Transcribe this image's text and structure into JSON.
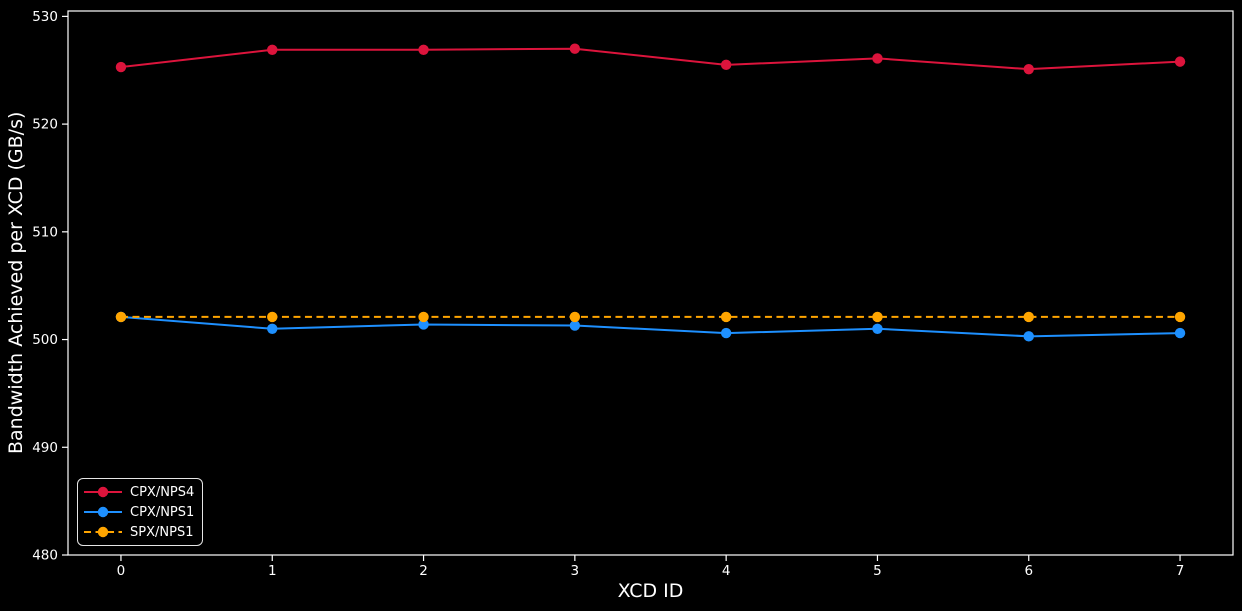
{
  "figure": {
    "background": "#000000",
    "text_color": "#ffffff",
    "axis_color": "#ffffff"
  },
  "chart_data": {
    "type": "line",
    "title": "",
    "xlabel": "XCD ID",
    "ylabel": "Bandwidth Achieved per XCD (GB/s)",
    "x": [
      0,
      1,
      2,
      3,
      4,
      5,
      6,
      7
    ],
    "xtick_labels": [
      "0",
      "1",
      "2",
      "3",
      "4",
      "5",
      "6",
      "7"
    ],
    "yticks": [
      480,
      490,
      500,
      510,
      520,
      530
    ],
    "ytick_labels": [
      "480",
      "490",
      "500",
      "510",
      "520",
      "530"
    ],
    "xlim": [
      -0.35,
      7.35
    ],
    "ylim": [
      480,
      530.5
    ],
    "grid": false,
    "legend_position": "lower-left",
    "series": [
      {
        "name": "CPX/NPS4",
        "color": "#dc143c",
        "line_style": "solid",
        "marker": "circle",
        "values": [
          525.3,
          526.9,
          526.9,
          527.0,
          525.5,
          526.1,
          525.1,
          525.8
        ]
      },
      {
        "name": "CPX/NPS1",
        "color": "#1e90ff",
        "line_style": "solid",
        "marker": "circle",
        "values": [
          502.1,
          501.0,
          501.4,
          501.3,
          500.6,
          501.0,
          500.3,
          500.6
        ]
      },
      {
        "name": "SPX/NPS1",
        "color": "#ffa500",
        "line_style": "dashed",
        "marker": "circle",
        "values": [
          502.1,
          502.1,
          502.1,
          502.1,
          502.1,
          502.1,
          502.1,
          502.1
        ]
      }
    ]
  }
}
